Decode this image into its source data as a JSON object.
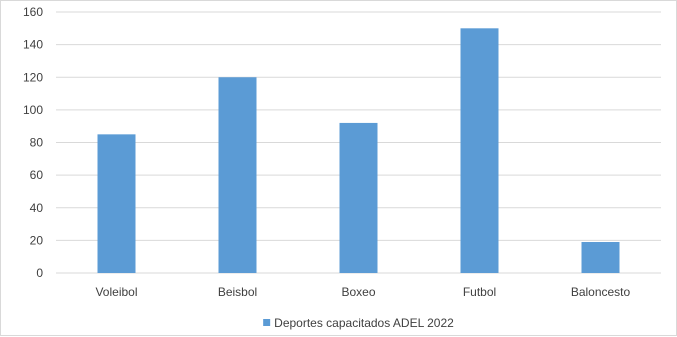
{
  "chart_data": {
    "type": "bar",
    "title": "",
    "xlabel": "",
    "ylabel": "",
    "categories": [
      "Voleibol",
      "Beisbol",
      "Boxeo",
      "Futbol",
      "Baloncesto"
    ],
    "series": [
      {
        "name": "Deportes capacitados ADEL 2022",
        "values": [
          85,
          120,
          92,
          150,
          19
        ]
      }
    ],
    "ylim": [
      0,
      160
    ],
    "yticks": [
      "0",
      "20",
      "40",
      "60",
      "80",
      "100",
      "120",
      "140",
      "160"
    ],
    "grid": true,
    "legend_position": "bottom",
    "colors": {
      "bar": "#5b9bd5",
      "grid": "#d9d9d9",
      "text": "#404040"
    }
  }
}
